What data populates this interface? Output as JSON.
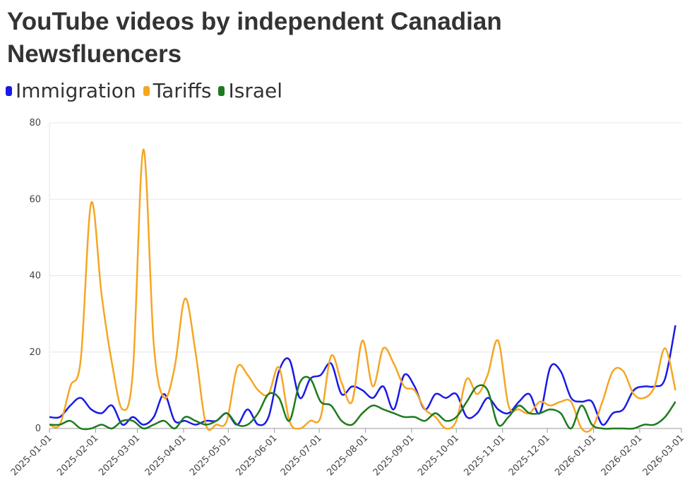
{
  "chart_data": {
    "type": "line",
    "title": "YouTube videos by independent Canadian Newsfluencers",
    "x": [
      "2025-01-01",
      "2025-01-08",
      "2025-01-15",
      "2025-01-22",
      "2025-01-29",
      "2025-02-05",
      "2025-02-12",
      "2025-02-19",
      "2025-02-26",
      "2025-03-05",
      "2025-03-12",
      "2025-03-19",
      "2025-03-26",
      "2025-04-02",
      "2025-04-09",
      "2025-04-16",
      "2025-04-23",
      "2025-04-30",
      "2025-05-07",
      "2025-05-14",
      "2025-05-21",
      "2025-05-28",
      "2025-06-04",
      "2025-06-11",
      "2025-06-18",
      "2025-06-25",
      "2025-07-02",
      "2025-07-09",
      "2025-07-16",
      "2025-07-23",
      "2025-07-30",
      "2025-08-06",
      "2025-08-13",
      "2025-08-20",
      "2025-08-27",
      "2025-09-03",
      "2025-09-10",
      "2025-09-17",
      "2025-09-24",
      "2025-10-01",
      "2025-10-08",
      "2025-10-15",
      "2025-10-22",
      "2025-10-29",
      "2025-11-05",
      "2025-11-12",
      "2025-11-19",
      "2025-11-26",
      "2025-12-03",
      "2025-12-10",
      "2025-12-17",
      "2025-12-24",
      "2025-12-31",
      "2026-01-07",
      "2026-01-14",
      "2026-01-21",
      "2026-01-28",
      "2026-02-04",
      "2026-02-11",
      "2026-02-18",
      "2026-02-25"
    ],
    "series": [
      {
        "name": "Immigration",
        "color": "#1a1ae6",
        "values": [
          3,
          3,
          6,
          8,
          5,
          4,
          6,
          1,
          3,
          1,
          3,
          9,
          2,
          2,
          1,
          2,
          2,
          4,
          1,
          5,
          1,
          3,
          15,
          18,
          8,
          13,
          14,
          17,
          9,
          11,
          10,
          8,
          11,
          5,
          14,
          11,
          5,
          9,
          8,
          9,
          3,
          4,
          8,
          5,
          4,
          7,
          9,
          4,
          16,
          15,
          8,
          7,
          7,
          1,
          4,
          5,
          10,
          11,
          11,
          13,
          27
        ]
      },
      {
        "name": "Tariffs",
        "color": "#f5a623",
        "values": [
          1,
          1,
          11,
          18,
          59,
          35,
          17,
          5,
          15,
          73,
          22,
          8,
          16,
          34,
          20,
          1,
          1,
          2,
          16,
          14,
          10,
          9,
          16,
          2,
          0,
          2,
          3,
          19,
          12,
          7,
          23,
          11,
          21,
          17,
          11,
          10,
          5,
          3,
          0,
          2,
          13,
          9,
          14,
          23,
          6,
          5,
          4,
          7,
          6,
          7,
          7,
          0,
          0,
          7,
          15,
          15,
          9,
          8,
          11,
          21,
          10
        ]
      },
      {
        "name": "Israel",
        "color": "#1e7a1e",
        "values": [
          1,
          1,
          2,
          0,
          0,
          1,
          0,
          2,
          2,
          0,
          1,
          2,
          0,
          3,
          2,
          1,
          2,
          4,
          1,
          1,
          4,
          9,
          8,
          2,
          12,
          13,
          7,
          6,
          2,
          1,
          4,
          6,
          5,
          4,
          3,
          3,
          2,
          4,
          2,
          3,
          7,
          11,
          10,
          1,
          3,
          6,
          4,
          4,
          5,
          4,
          0,
          6,
          1,
          0,
          0,
          0,
          0,
          1,
          1,
          3,
          7
        ]
      }
    ],
    "xlim": [
      "2025-01-01",
      "2026-03-01"
    ],
    "xticks": [
      "2025-01-01",
      "2025-02-01",
      "2025-03-01",
      "2025-04-01",
      "2025-05-01",
      "2025-06-01",
      "2025-07-01",
      "2025-08-01",
      "2025-09-01",
      "2025-10-01",
      "2025-11-01",
      "2025-12-01",
      "2026-01-01",
      "2026-02-01",
      "2026-03-01"
    ],
    "ylim": [
      0,
      80
    ],
    "yticks": [
      0,
      20,
      40,
      60,
      80
    ],
    "grid": true
  }
}
